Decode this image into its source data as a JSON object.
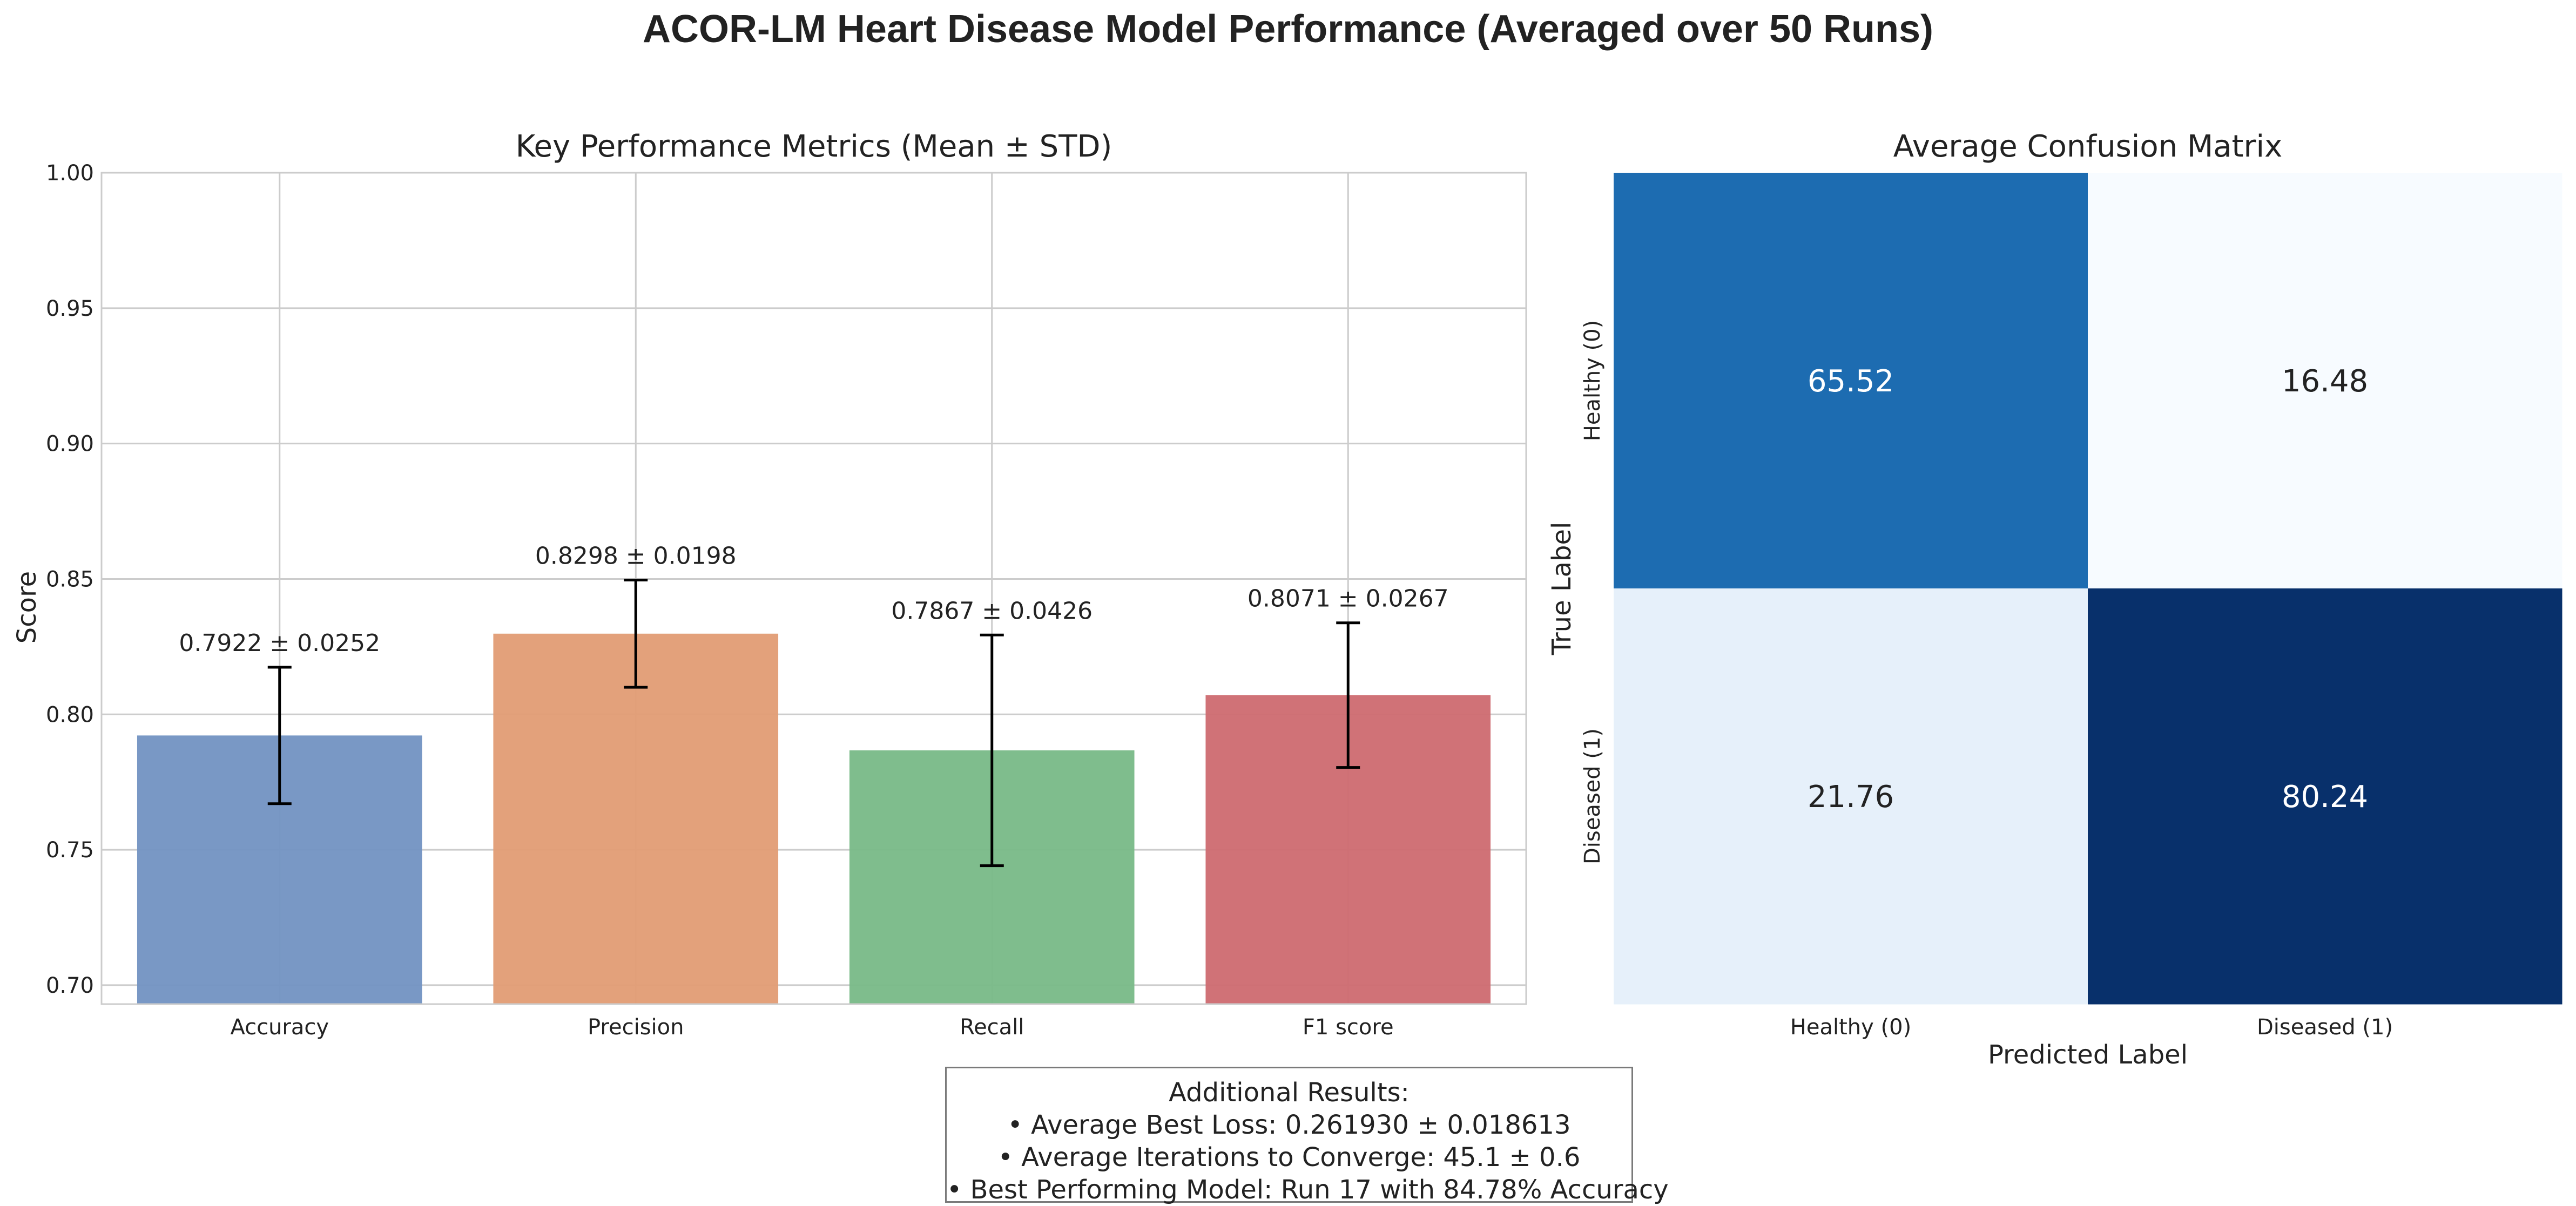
{
  "title": "ACOR-LM Heart Disease Model Performance (Averaged over 50 Runs)",
  "chart_data": [
    {
      "type": "bar",
      "title": "Key Performance Metrics (Mean ± STD)",
      "xlabel": "",
      "ylabel": "Score",
      "categories": [
        "Accuracy",
        "Precision",
        "Recall",
        "F1 score"
      ],
      "values": [
        0.7922,
        0.8298,
        0.7867,
        0.8071
      ],
      "errors": [
        0.0252,
        0.0198,
        0.0426,
        0.0267
      ],
      "value_labels": [
        "0.7922 ± 0.0252",
        "0.8298 ± 0.0198",
        "0.7867 ± 0.0426",
        "0.8071 ± 0.0267"
      ],
      "ylim": [
        0.693,
        1.0
      ],
      "yticks": [
        0.7,
        0.75,
        0.8,
        0.85,
        0.9,
        0.95,
        1.0
      ],
      "ytick_labels": [
        "0.70",
        "0.75",
        "0.80",
        "0.85",
        "0.90",
        "0.95",
        "1.00"
      ],
      "colors": [
        "#7292c2",
        "#e29c74",
        "#78b987",
        "#cd6a70"
      ],
      "grid": true
    },
    {
      "type": "heatmap",
      "title": "Average Confusion Matrix",
      "xlabel": "Predicted Label",
      "ylabel": "True Label",
      "x_categories": [
        "Healthy (0)",
        "Diseased (1)"
      ],
      "y_categories": [
        "Healthy (0)",
        "Diseased (1)"
      ],
      "values": [
        [
          65.52,
          16.48
        ],
        [
          21.76,
          80.24
        ]
      ],
      "cell_labels": [
        [
          "65.52",
          "16.48"
        ],
        [
          "21.76",
          "80.24"
        ]
      ],
      "colormap": "Blues"
    }
  ],
  "additional_results": {
    "heading": "Additional Results:",
    "lines": [
      "• Average Best Loss: 0.261930 ± 0.018613",
      "• Average Iterations to Converge: 45.1 ± 0.6",
      "• Best Performing Model: Run 17 with 84.78% Accuracy"
    ]
  }
}
